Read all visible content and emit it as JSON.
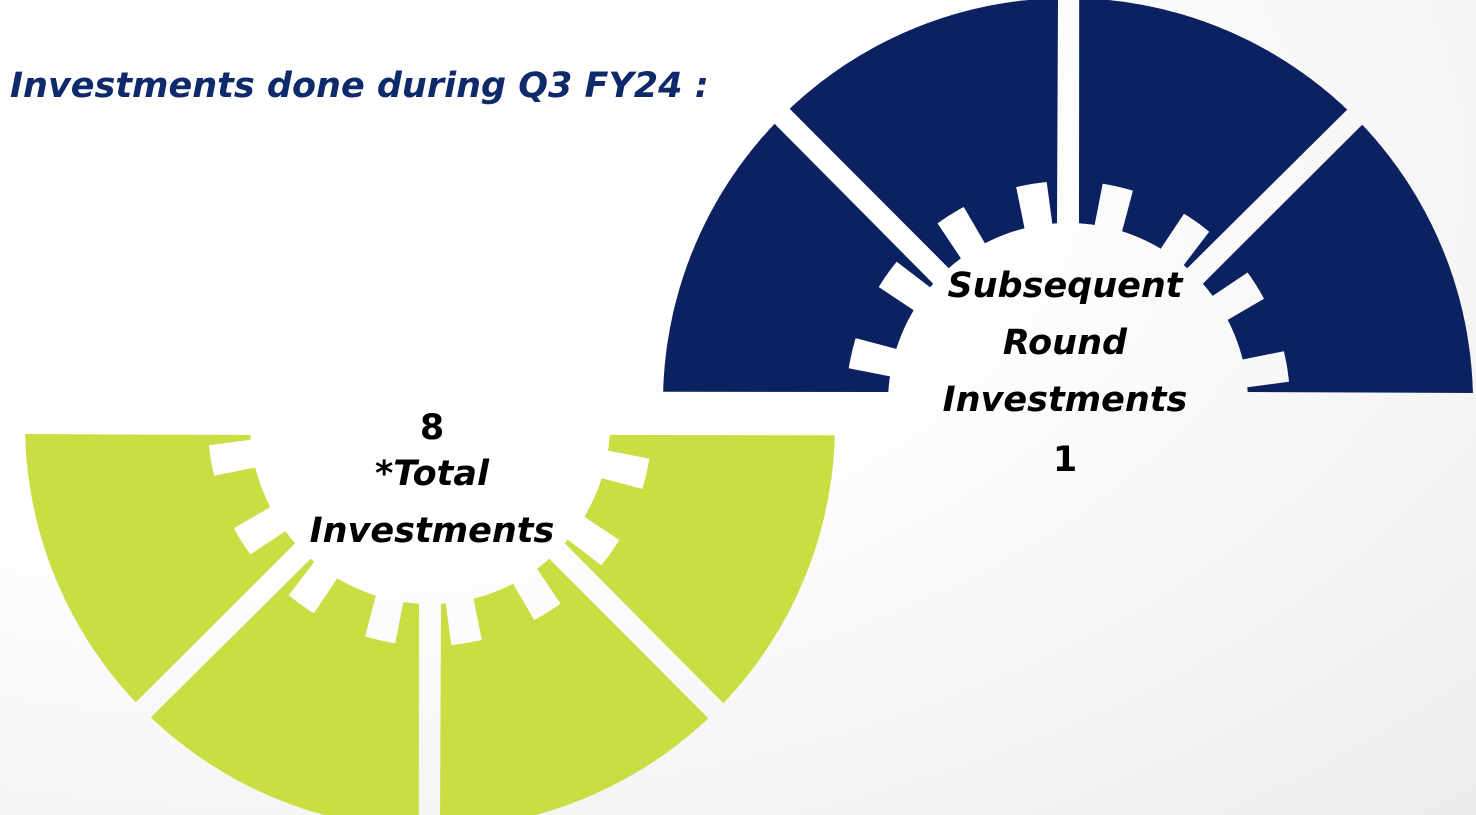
{
  "title": "Investments done during Q3 FY24 :",
  "total": {
    "value": 8,
    "label": "*Total Investments"
  },
  "subsequent": {
    "label": "Subsequent Round Investments",
    "value": 1
  }
}
